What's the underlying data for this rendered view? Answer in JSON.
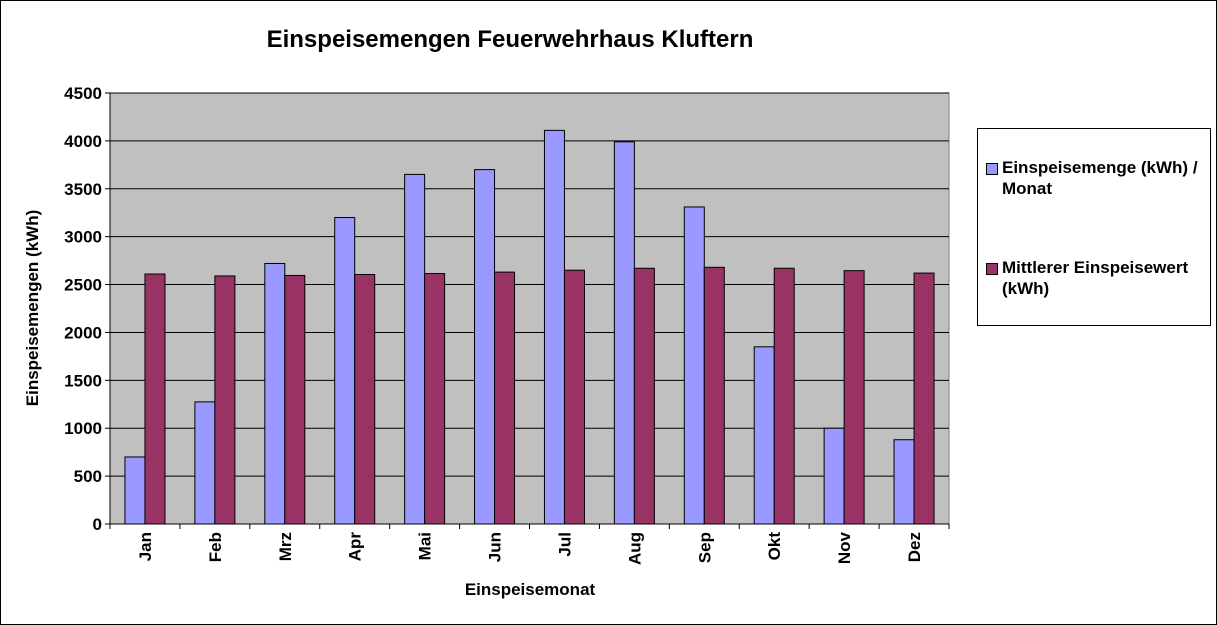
{
  "chart_data": {
    "type": "bar",
    "title": "Einspeisemengen Feuerwehrhaus Kluftern",
    "xlabel": "Einspeisemonat",
    "ylabel": "Einspeisemengen (kWh)",
    "categories": [
      "Jan",
      "Feb",
      "Mrz",
      "Apr",
      "Mai",
      "Jun",
      "Jul",
      "Aug",
      "Sep",
      "Okt",
      "Nov",
      "Dez"
    ],
    "series": [
      {
        "name": "Einspeisemenge (kWh) / Monat",
        "color": "#9999FF",
        "values": [
          700,
          1275,
          2720,
          3200,
          3650,
          3700,
          4110,
          3990,
          3310,
          1850,
          1000,
          880
        ]
      },
      {
        "name": "Mittlerer Einspeisewert (kWh)",
        "color": "#993366",
        "values": [
          2610,
          2590,
          2595,
          2605,
          2615,
          2630,
          2650,
          2670,
          2680,
          2670,
          2645,
          2620
        ]
      }
    ],
    "ylim": [
      0,
      4500
    ],
    "yticks": [
      0,
      500,
      1000,
      1500,
      2000,
      2500,
      3000,
      3500,
      4000,
      4500
    ],
    "grid": true,
    "plot_background": "#C0C0C0",
    "legend_position": "right"
  }
}
